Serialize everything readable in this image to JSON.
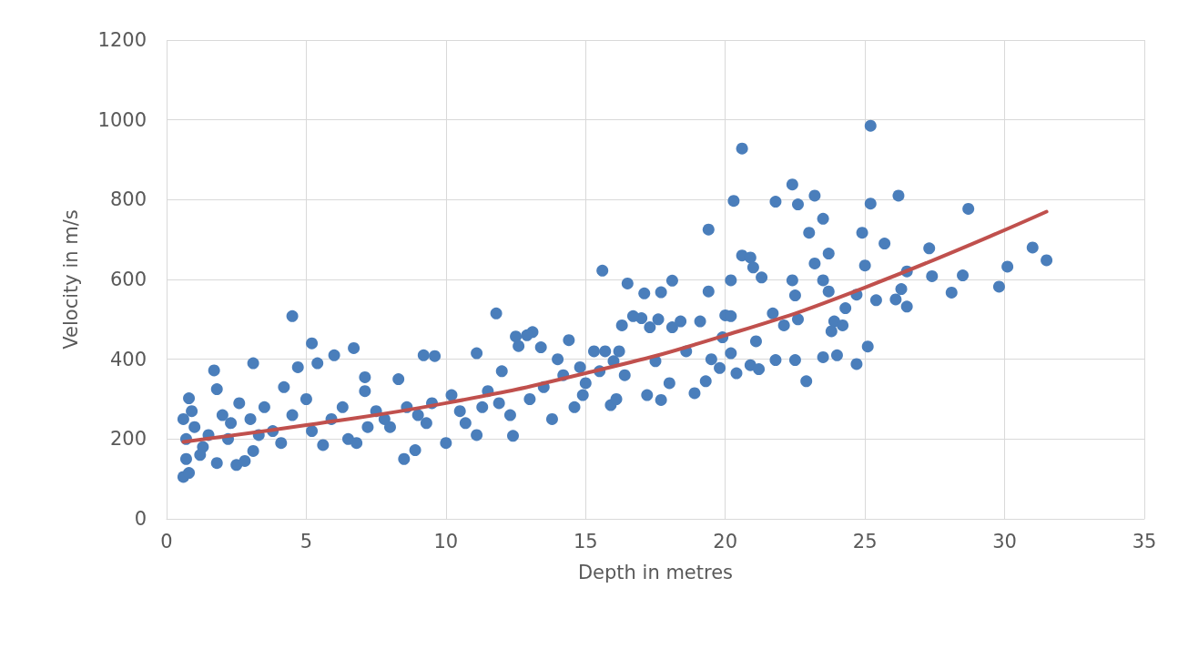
{
  "chart_data": {
    "type": "scatter",
    "xlabel": "Depth in metres",
    "ylabel": "Velocity in m/s",
    "xlim": [
      0,
      35
    ],
    "xticks": [
      0,
      5,
      10,
      15,
      20,
      25,
      30,
      35
    ],
    "ylim": [
      0,
      1200
    ],
    "yticks": [
      0,
      200,
      400,
      600,
      800,
      1000,
      1200
    ],
    "grid": true,
    "marker": "circle",
    "series": [
      {
        "color": "#4a7ebb",
        "x": [
          25.2,
          20.6,
          22.4,
          20.3,
          21.8,
          23.2,
          26.2,
          25.2,
          22.6,
          28.7,
          23.5,
          19.4,
          23.0,
          24.9,
          25.7,
          27.3,
          31.0,
          23.7,
          20.6,
          20.9,
          23.2,
          31.5,
          21.0,
          30.1,
          25.0,
          26.5,
          15.6,
          28.5,
          27.4,
          21.3,
          22.4,
          20.2,
          29.8,
          23.5,
          18.1,
          19.4,
          16.5,
          26.3,
          17.7,
          17.1,
          28.1,
          23.7,
          24.7,
          22.5,
          25.4,
          26.1,
          26.5,
          11.8,
          4.5,
          17.0,
          16.7,
          17.6,
          18.4,
          19.1,
          22.6,
          20.0,
          20.2,
          21.7,
          22.1,
          23.9,
          24.2,
          23.8,
          24.3,
          12.5,
          13.1,
          12.9,
          12.6,
          14.4,
          16.3,
          17.3,
          18.1,
          19.9,
          21.1,
          25.1,
          5.2,
          6.7,
          9.2,
          9.6,
          11.1,
          15.3,
          15.7,
          16.2,
          13.4,
          14.0,
          14.8,
          15.0,
          15.9,
          16.1,
          17.2,
          17.7,
          18.0,
          18.9,
          19.3,
          19.8,
          20.4,
          20.9,
          21.2,
          21.8,
          22.5,
          22.9,
          23.5,
          24.0,
          24.7,
          12.4,
          10.0,
          11.1,
          8.9,
          8.5,
          3.1,
          1.7,
          4.7,
          5.4,
          6.0,
          7.1,
          8.3,
          0.6,
          0.8,
          0.7,
          0.8,
          0.6,
          1.8,
          1.8,
          2.5,
          2.8,
          3.1,
          1.3,
          2.2,
          2.0,
          2.6,
          3.5,
          4.2,
          4.1,
          5.0,
          5.6,
          6.5,
          6.8,
          7.1,
          7.5,
          8.0,
          9.0,
          9.5,
          10.2,
          10.7,
          11.3,
          11.5,
          12.0,
          12.3,
          13.0,
          13.5,
          14.2,
          14.6,
          15.5,
          0.7,
          1.0,
          1.5,
          2.3,
          3.0,
          3.8,
          4.5,
          5.2,
          5.9,
          6.3,
          7.2,
          7.8,
          8.6,
          9.3,
          1.2,
          0.9,
          3.3,
          10.5,
          11.9,
          13.8,
          14.9,
          16.0,
          16.4,
          17.5,
          18.6,
          19.5,
          20.2
        ],
        "values": [
          985,
          928,
          838,
          797,
          795,
          810,
          810,
          790,
          788,
          777,
          752,
          725,
          717,
          717,
          690,
          678,
          680,
          665,
          660,
          655,
          640,
          648,
          630,
          632,
          635,
          620,
          622,
          610,
          608,
          605,
          598,
          598,
          582,
          598,
          597,
          570,
          590,
          576,
          568,
          565,
          567,
          570,
          562,
          560,
          548,
          550,
          532,
          515,
          508,
          503,
          508,
          500,
          495,
          495,
          500,
          510,
          508,
          515,
          485,
          495,
          485,
          470,
          528,
          457,
          468,
          460,
          433,
          448,
          485,
          480,
          480,
          455,
          445,
          432,
          440,
          428,
          410,
          408,
          415,
          420,
          420,
          420,
          430,
          400,
          380,
          340,
          285,
          300,
          310,
          298,
          340,
          315,
          345,
          378,
          365,
          385,
          375,
          398,
          398,
          345,
          405,
          410,
          388,
          208,
          190,
          210,
          172,
          150,
          390,
          372,
          380,
          390,
          410,
          355,
          350,
          105,
          115,
          150,
          302,
          250,
          325,
          140,
          135,
          145,
          170,
          180,
          200,
          260,
          290,
          280,
          330,
          190,
          300,
          185,
          200,
          190,
          320,
          270,
          230,
          260,
          290,
          310,
          240,
          280,
          320,
          370,
          260,
          300,
          330,
          360,
          280,
          370,
          200,
          230,
          210,
          240,
          250,
          220,
          260,
          220,
          250,
          280,
          230,
          250,
          280,
          240,
          160,
          270,
          210,
          270,
          290,
          250,
          310,
          395,
          360,
          395,
          420,
          400,
          415
        ]
      },
      {
        "type": "line",
        "color": "#c0504d",
        "marker": "none",
        "x": [
          0.6,
          5,
          10,
          15,
          20,
          25,
          31.5
        ],
        "values": [
          193,
          235,
          290,
          365,
          460,
          580,
          770
        ]
      }
    ]
  }
}
